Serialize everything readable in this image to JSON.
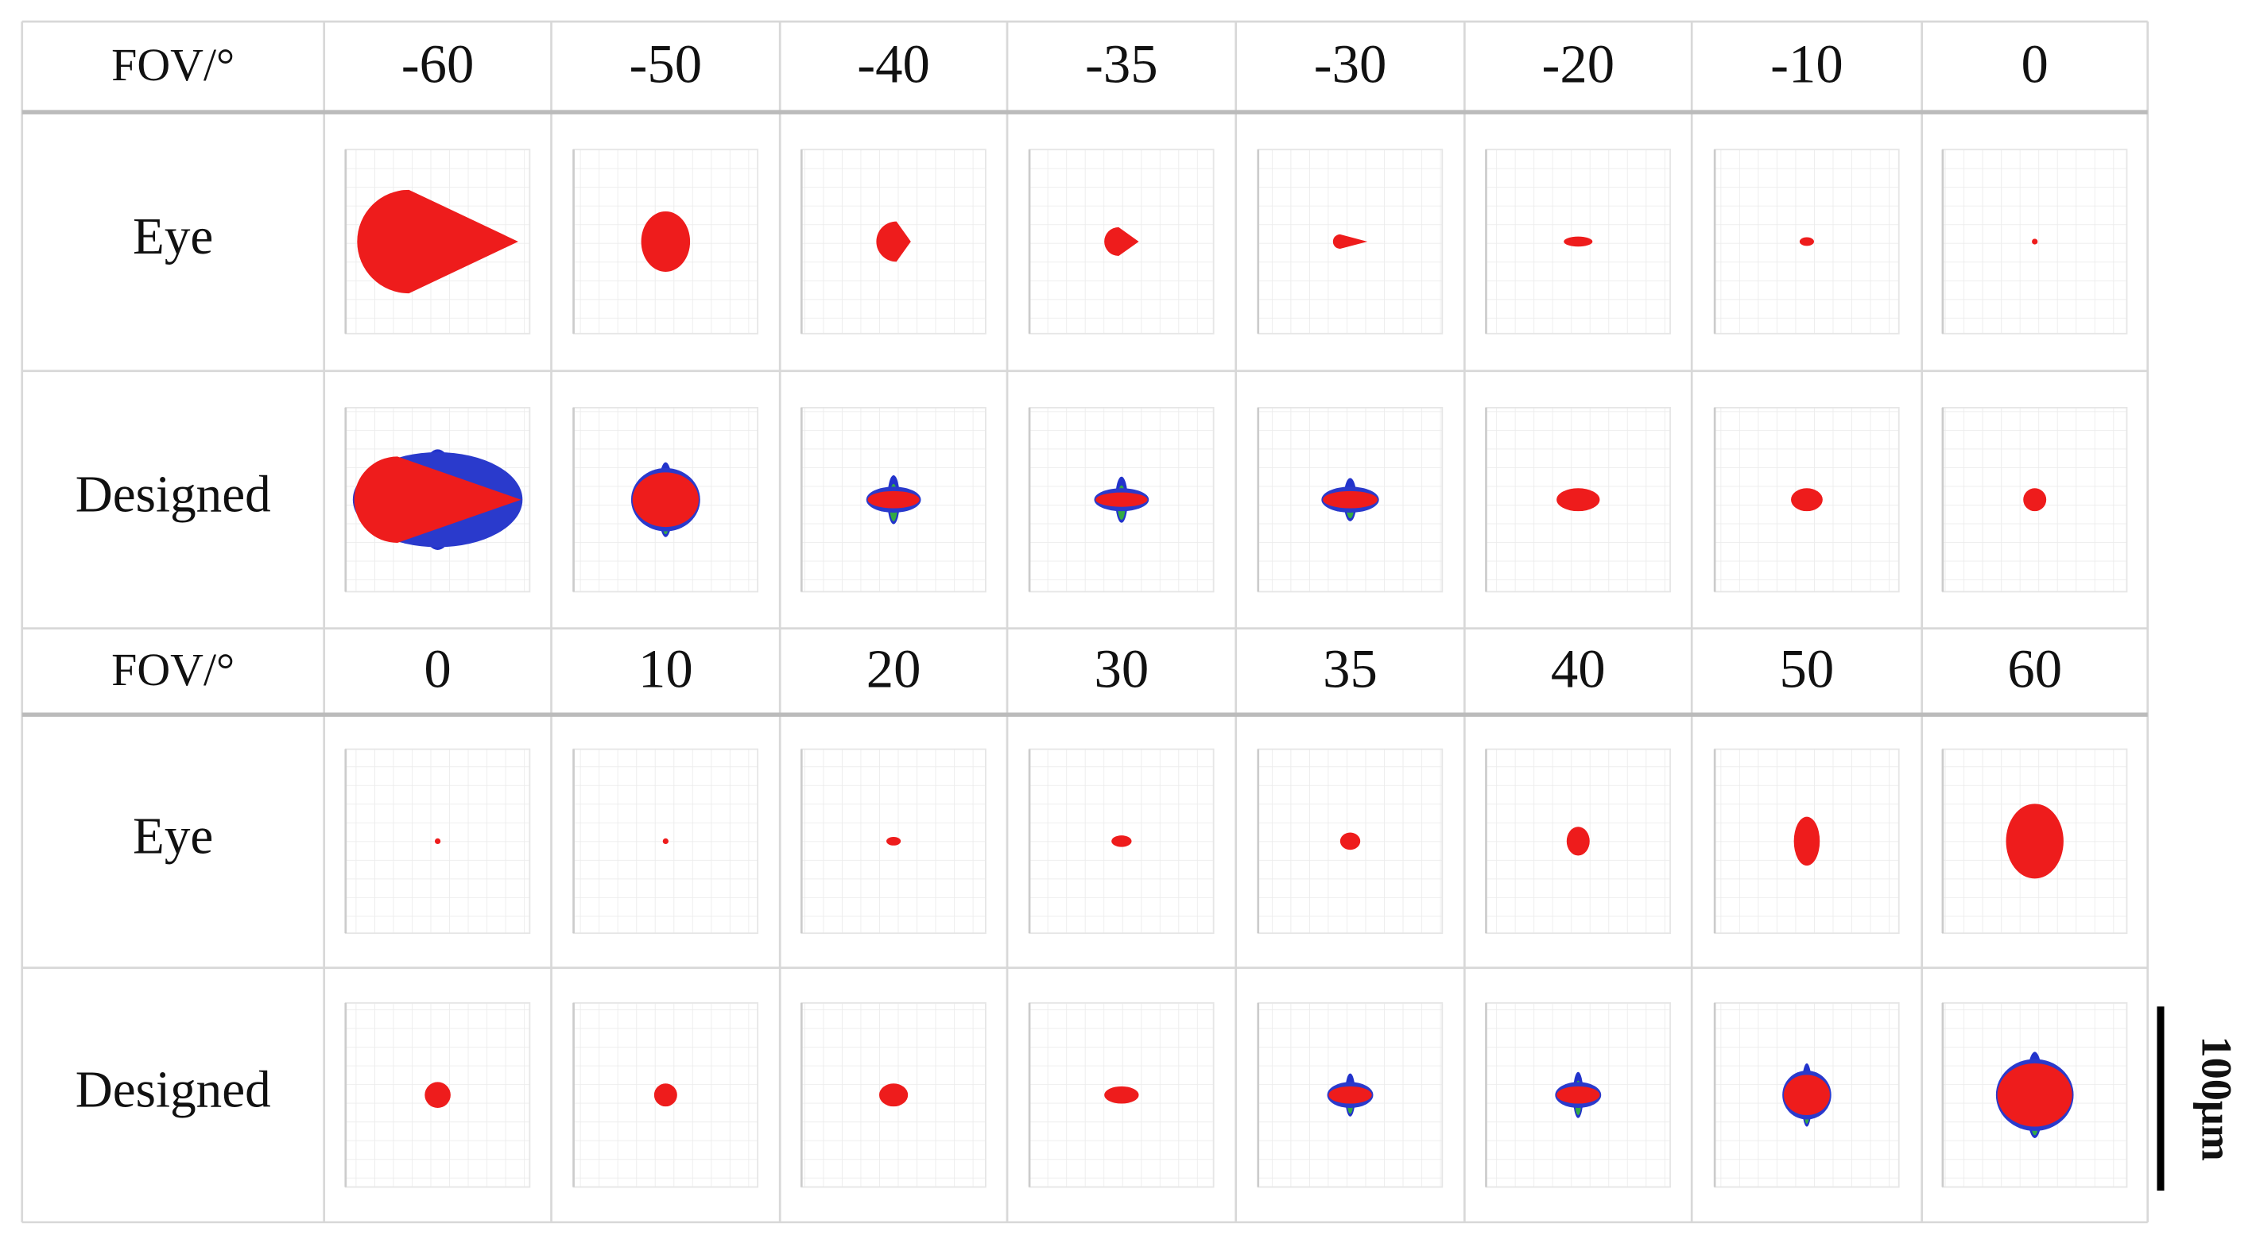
{
  "table": {
    "sections": [
      {
        "header": [
          "FOV/°",
          "-60",
          "-50",
          "-40",
          "-35",
          "-30",
          "-20",
          "-10",
          "0"
        ],
        "rows": [
          "Eye",
          "Designed"
        ]
      },
      {
        "header": [
          "FOV/°",
          "0",
          "10",
          "20",
          "30",
          "35",
          "40",
          "50",
          "60"
        ],
        "rows": [
          "Eye",
          "Designed"
        ]
      }
    ]
  },
  "scale_bar": "100μm"
}
